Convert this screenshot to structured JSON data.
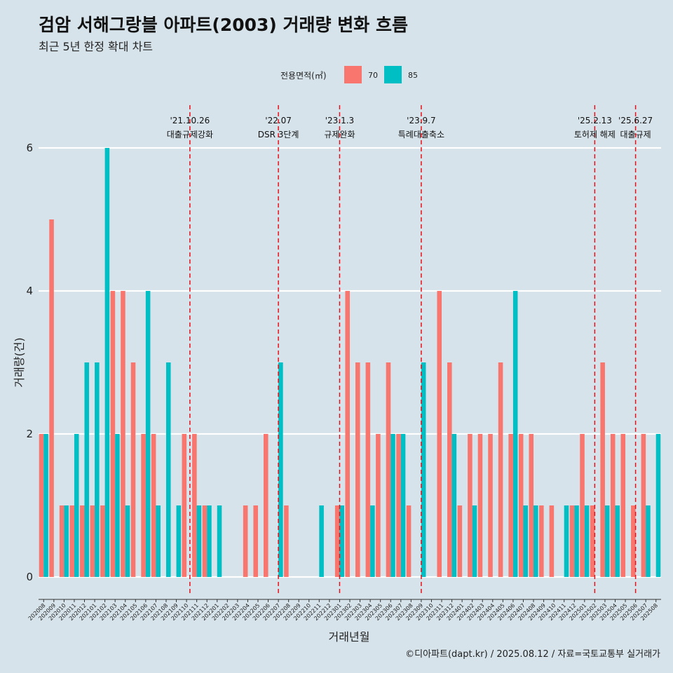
{
  "header": {
    "title": "검암 서해그랑블 아파트(2003) 거래량 변화 흐름",
    "subtitle": "최근 5년 한정 확대 차트"
  },
  "caption": "©디아파트(dapt.kr) / 2025.08.12 / 자료=국토교통부 실거래가",
  "chart_data": {
    "type": "bar",
    "title": "검암 서해그랑블 아파트(2003) 거래량 변화 흐름",
    "subtitle": "최근 5년 한정 확대 차트",
    "xlabel": "거래년월",
    "ylabel": "거래량(건)",
    "ylim": [
      0,
      6
    ],
    "yticks": [
      0,
      2,
      4,
      6
    ],
    "legend": {
      "title": "전용면적(㎡)",
      "position": "top",
      "entries": [
        {
          "name": "70",
          "color": "#f8766d"
        },
        {
          "name": "85",
          "color": "#00bfc4"
        }
      ]
    },
    "categories": [
      "202008",
      "202009",
      "202010",
      "202011",
      "202012",
      "202101",
      "202102",
      "202103",
      "202104",
      "202105",
      "202106",
      "202107",
      "202108",
      "202109",
      "202110",
      "202111",
      "202112",
      "202201",
      "202202",
      "202203",
      "202204",
      "202205",
      "202206",
      "202207",
      "202208",
      "202209",
      "202210",
      "202211",
      "202212",
      "202301",
      "202302",
      "202303",
      "202304",
      "202305",
      "202306",
      "202307",
      "202308",
      "202309",
      "202310",
      "202311",
      "202312",
      "202401",
      "202402",
      "202403",
      "202404",
      "202405",
      "202406",
      "202407",
      "202408",
      "202409",
      "202410",
      "202411",
      "202412",
      "202501",
      "202502",
      "202503",
      "202504",
      "202505",
      "202506",
      "202507",
      "202508"
    ],
    "series": [
      {
        "name": "70",
        "color": "#f8766d",
        "values": [
          2,
          5,
          1,
          1,
          1,
          1,
          1,
          4,
          4,
          3,
          2,
          2,
          0,
          0,
          2,
          2,
          1,
          0,
          0,
          0,
          1,
          1,
          2,
          0,
          1,
          0,
          0,
          0,
          0,
          1,
          4,
          3,
          3,
          2,
          3,
          2,
          1,
          0,
          0,
          4,
          3,
          1,
          2,
          2,
          2,
          3,
          2,
          2,
          2,
          1,
          1,
          0,
          1,
          2,
          1,
          3,
          2,
          2,
          1,
          2,
          0
        ]
      },
      {
        "name": "85",
        "color": "#00bfc4",
        "values": [
          2,
          0,
          1,
          2,
          3,
          3,
          6,
          2,
          1,
          0,
          4,
          1,
          3,
          1,
          0,
          1,
          1,
          1,
          0,
          0,
          0,
          0,
          0,
          3,
          0,
          0,
          0,
          1,
          0,
          1,
          0,
          0,
          1,
          0,
          2,
          2,
          0,
          3,
          0,
          0,
          2,
          0,
          1,
          0,
          0,
          0,
          4,
          1,
          1,
          0,
          0,
          1,
          1,
          1,
          0,
          1,
          1,
          0,
          0,
          1,
          2
        ]
      }
    ],
    "annotations": [
      {
        "date": "'21.10.26",
        "label": "대출규제강화",
        "month_index": 14.33
      },
      {
        "date": "'22.07",
        "label": "DSR 3단계",
        "month_index": 23.0
      },
      {
        "date": "'23.1.3",
        "label": "규제완화",
        "month_index": 29.0
      },
      {
        "date": "'23.9.7",
        "label": "특례대출축소",
        "month_index": 37.0
      },
      {
        "date": "'25.2.13",
        "label": "토허제 해제",
        "month_index": 54.0
      },
      {
        "date": "'25.6.27",
        "label": "대출규제",
        "month_index": 58.0
      }
    ]
  }
}
